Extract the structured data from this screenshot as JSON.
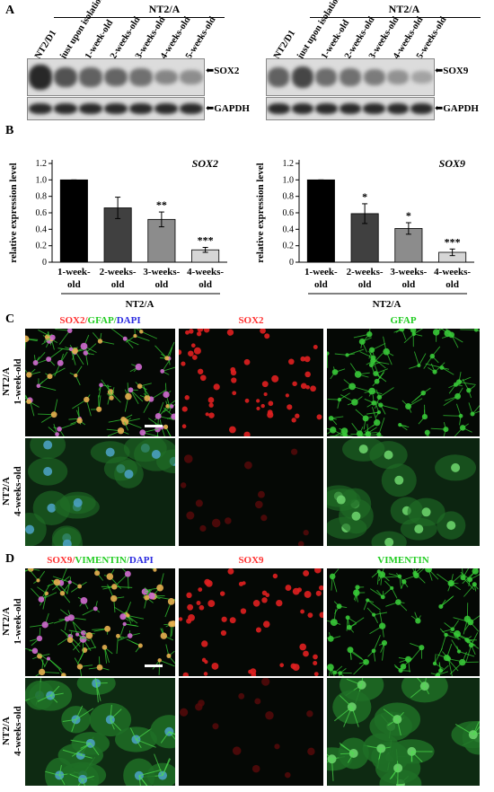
{
  "panels": {
    "A": "A",
    "B": "B",
    "C": "C",
    "D": "D"
  },
  "blotA": {
    "left": {
      "lanes": [
        "NT2/D1",
        "just upon isolation",
        "1-week-old",
        "2-weeks-old",
        "3-weeks-old",
        "4-weeks-old",
        "5-weeks-old"
      ],
      "group": "NT2/A",
      "target": "SOX2",
      "loading": "GAPDH",
      "intensity": [
        1.0,
        0.72,
        0.62,
        0.6,
        0.52,
        0.38,
        0.33
      ]
    },
    "right": {
      "lanes": [
        "NT2/D1",
        "just upon isolation",
        "1-week-old",
        "2-weeks-old",
        "3-weeks-old",
        "4-weeks-old",
        "5-weeks-old"
      ],
      "group": "NT2/A",
      "target": "SOX9",
      "loading": "GAPDH",
      "intensity": [
        0.62,
        0.8,
        0.55,
        0.52,
        0.45,
        0.3,
        0.18
      ]
    }
  },
  "chart_data": [
    {
      "type": "bar",
      "title": "SOX2",
      "ylabel": "relative expression level",
      "xgroup": "NT2/A",
      "categories": [
        "1-week-old",
        "2-weeks-old",
        "3-weeks-old",
        "4-weeks-old"
      ],
      "cat_lines": [
        [
          "1-week-",
          "old"
        ],
        [
          "2-weeks-",
          "old"
        ],
        [
          "3-weeks-",
          "old"
        ],
        [
          "4-weeks-",
          "old"
        ]
      ],
      "values": [
        1.0,
        0.66,
        0.52,
        0.15
      ],
      "errors": [
        0.0,
        0.13,
        0.09,
        0.03
      ],
      "significance": [
        "",
        "",
        "**",
        "***"
      ],
      "colors": [
        "#000000",
        "#404040",
        "#8c8c8c",
        "#d6d6d6"
      ],
      "ylim": [
        0,
        1.2
      ],
      "yticks": [
        "0",
        "0.2",
        "0.4",
        "0.6",
        "0.8",
        "1.0",
        "1.2"
      ]
    },
    {
      "type": "bar",
      "title": "SOX9",
      "ylabel": "relative expression level",
      "xgroup": "NT2/A",
      "categories": [
        "1-week-old",
        "2-weeks-old",
        "3-weeks-old",
        "4-weeks-old"
      ],
      "cat_lines": [
        [
          "1-week-",
          "old"
        ],
        [
          "2-weeks-",
          "old"
        ],
        [
          "3-weeks-",
          "old"
        ],
        [
          "4-weeks-",
          "old"
        ]
      ],
      "values": [
        1.0,
        0.59,
        0.41,
        0.12
      ],
      "errors": [
        0.0,
        0.12,
        0.07,
        0.04
      ],
      "significance": [
        "",
        "*",
        "*",
        "***"
      ],
      "colors": [
        "#000000",
        "#404040",
        "#8c8c8c",
        "#d6d6d6"
      ],
      "ylim": [
        0,
        1.2
      ],
      "yticks": [
        "0",
        "0.2",
        "0.4",
        "0.6",
        "0.8",
        "1.0",
        "1.2"
      ]
    }
  ],
  "panelC": {
    "titles": [
      [
        {
          "t": "SOX2",
          "c": "#ff3030"
        },
        {
          "t": "/",
          "c": "#ff3030"
        },
        {
          "t": "GFAP",
          "c": "#22cc22"
        },
        {
          "t": "/",
          "c": "#22cc22"
        },
        {
          "t": "DAPI",
          "c": "#2a2ae0"
        }
      ],
      [
        {
          "t": "SOX2",
          "c": "#ff3030"
        }
      ],
      [
        {
          "t": "GFAP",
          "c": "#22cc22"
        }
      ]
    ],
    "rows": [
      "NT2/A 1-week-old",
      "NT2/A 4-weeks-old"
    ],
    "row_lines": [
      [
        "NT2/A",
        "1-week-old"
      ],
      [
        "NT2/A",
        "4-weeks-old"
      ]
    ]
  },
  "panelD": {
    "titles": [
      [
        {
          "t": "SOX9",
          "c": "#ff3030"
        },
        {
          "t": "/",
          "c": "#ff3030"
        },
        {
          "t": "VIMENTIN",
          "c": "#22cc22"
        },
        {
          "t": "/",
          "c": "#22cc22"
        },
        {
          "t": "DAPI",
          "c": "#2a2ae0"
        }
      ],
      [
        {
          "t": "SOX9",
          "c": "#ff3030"
        }
      ],
      [
        {
          "t": "VIMENTIN",
          "c": "#22cc22"
        }
      ]
    ],
    "rows": [
      "NT2/A 1-week-old",
      "NT2/A 4-weeks-old"
    ],
    "row_lines": [
      [
        "NT2/A",
        "1-week-old"
      ],
      [
        "NT2/A",
        "4-weeks-old"
      ]
    ]
  }
}
